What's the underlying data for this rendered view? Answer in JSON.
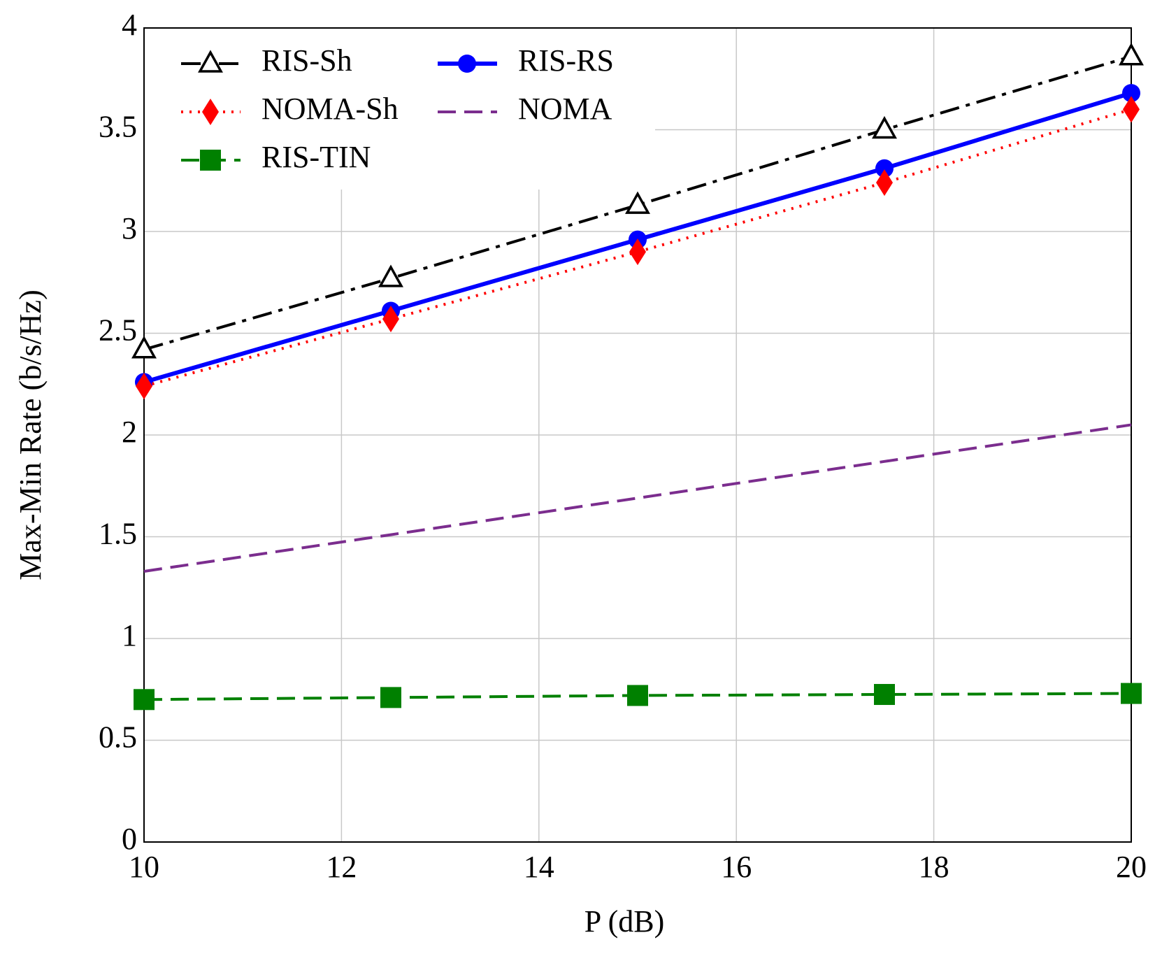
{
  "chart_data": {
    "type": "line",
    "xlabel": "P (dB)",
    "ylabel": "Max-Min Rate (b/s/Hz)",
    "x": [
      10,
      12.5,
      15,
      17.5,
      20
    ],
    "series": [
      {
        "name": "RIS-Sh",
        "color": "#000000",
        "dash": "dashdot",
        "marker": "triangle-open",
        "values": [
          2.42,
          2.77,
          3.13,
          3.5,
          3.86
        ]
      },
      {
        "name": "RIS-RS",
        "color": "#0000ff",
        "dash": "solid",
        "marker": "circle",
        "values": [
          2.26,
          2.61,
          2.96,
          3.31,
          3.68
        ]
      },
      {
        "name": "NOMA-Sh",
        "color": "#ff0000",
        "dash": "dotted",
        "marker": "diamond",
        "values": [
          2.24,
          2.57,
          2.9,
          3.24,
          3.6
        ]
      },
      {
        "name": "NOMA",
        "color": "#7b2d8e",
        "dash": "dashed",
        "marker": "none",
        "values": [
          1.33,
          1.51,
          1.69,
          1.87,
          2.05
        ]
      },
      {
        "name": "RIS-TIN",
        "color": "#008000",
        "dash": "dashed",
        "marker": "square",
        "values": [
          0.7,
          0.71,
          0.72,
          0.725,
          0.73
        ]
      }
    ],
    "xlim": [
      10,
      20
    ],
    "xticks": [
      10,
      12,
      14,
      16,
      18,
      20
    ],
    "ylim": [
      0,
      4
    ],
    "yticks": [
      0,
      0.5,
      1,
      1.5,
      2,
      2.5,
      3,
      3.5,
      4
    ],
    "grid": true,
    "legend": "upper left"
  }
}
